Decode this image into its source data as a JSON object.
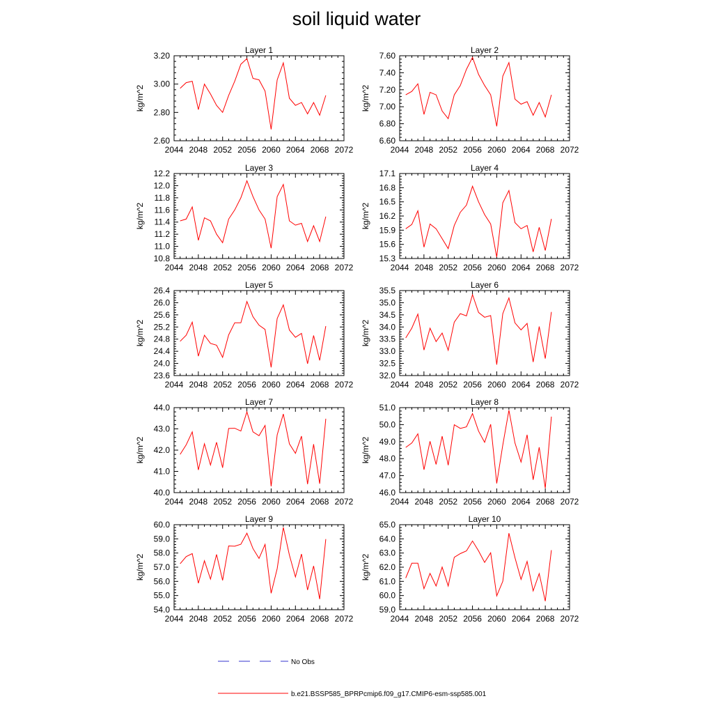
{
  "figure": {
    "title": "soil liquid water",
    "legend": [
      {
        "label": "No Obs",
        "color": "#3333cc",
        "style": "dashed"
      },
      {
        "label": "b.e21.BSSP585_BPRPcmip6.f09_g17.CMIP6-esm-ssp585.001",
        "color": "#ff0000",
        "style": "solid"
      }
    ]
  },
  "chart_data": [
    {
      "type": "line",
      "title": "Layer 1",
      "ylabel": "kg/m^2",
      "xlim": [
        2044,
        2072
      ],
      "ylim": [
        2.6,
        3.2
      ],
      "yticks": [
        "2.60",
        "2.80",
        "3.00",
        "3.20"
      ],
      "xticks": [
        2044,
        2048,
        2052,
        2056,
        2060,
        2064,
        2068,
        2072
      ],
      "grid": false,
      "x": [
        2045,
        2046,
        2047,
        2048,
        2049,
        2050,
        2051,
        2052,
        2053,
        2054,
        2055,
        2056,
        2057,
        2058,
        2059,
        2060,
        2061,
        2062,
        2063,
        2064,
        2065,
        2066,
        2067,
        2068,
        2069
      ],
      "series": [
        {
          "name": "b.e21.BSSP585_BPRPcmip6.f09_g17.CMIP6-esm-ssp585.001",
          "color": "#ff0000",
          "values": [
            2.97,
            3.01,
            3.02,
            2.82,
            3.0,
            2.93,
            2.85,
            2.8,
            2.92,
            3.02,
            3.14,
            3.18,
            3.04,
            3.03,
            2.95,
            2.68,
            3.03,
            3.15,
            2.9,
            2.85,
            2.87,
            2.79,
            2.87,
            2.78,
            2.92
          ]
        }
      ]
    },
    {
      "type": "line",
      "title": "Layer 2",
      "ylabel": "kg/m^2",
      "xlim": [
        2044,
        2072
      ],
      "ylim": [
        6.6,
        7.6
      ],
      "yticks": [
        "6.60",
        "6.80",
        "7.00",
        "7.20",
        "7.40",
        "7.60"
      ],
      "xticks": [
        2044,
        2048,
        2052,
        2056,
        2060,
        2064,
        2068,
        2072
      ],
      "grid": false,
      "x": [
        2045,
        2046,
        2047,
        2048,
        2049,
        2050,
        2051,
        2052,
        2053,
        2054,
        2055,
        2056,
        2057,
        2058,
        2059,
        2060,
        2061,
        2062,
        2063,
        2064,
        2065,
        2066,
        2067,
        2068,
        2069
      ],
      "series": [
        {
          "name": "b.e21.BSSP585_BPRPcmip6.f09_g17.CMIP6-esm-ssp585.001",
          "color": "#ff0000",
          "values": [
            7.14,
            7.18,
            7.27,
            6.91,
            7.17,
            7.14,
            6.95,
            6.86,
            7.14,
            7.25,
            7.44,
            7.58,
            7.38,
            7.25,
            7.14,
            6.77,
            7.36,
            7.52,
            7.09,
            7.03,
            7.06,
            6.9,
            7.05,
            6.88,
            7.14
          ]
        }
      ]
    },
    {
      "type": "line",
      "title": "Layer 3",
      "ylabel": "kg/m^2",
      "xlim": [
        2044,
        2072
      ],
      "ylim": [
        10.8,
        12.2
      ],
      "yticks": [
        "10.8",
        "11.0",
        "11.2",
        "11.4",
        "11.6",
        "11.8",
        "12.0",
        "12.2"
      ],
      "xticks": [
        2044,
        2048,
        2052,
        2056,
        2060,
        2064,
        2068,
        2072
      ],
      "grid": false,
      "x": [
        2045,
        2046,
        2047,
        2048,
        2049,
        2050,
        2051,
        2052,
        2053,
        2054,
        2055,
        2056,
        2057,
        2058,
        2059,
        2060,
        2061,
        2062,
        2063,
        2064,
        2065,
        2066,
        2067,
        2068,
        2069
      ],
      "series": [
        {
          "name": "b.e21.BSSP585_BPRPcmip6.f09_g17.CMIP6-esm-ssp585.001",
          "color": "#ff0000",
          "values": [
            11.42,
            11.45,
            11.65,
            11.1,
            11.47,
            11.42,
            11.2,
            11.06,
            11.45,
            11.6,
            11.8,
            12.08,
            11.82,
            11.6,
            11.45,
            10.97,
            11.82,
            12.02,
            11.42,
            11.35,
            11.38,
            11.08,
            11.34,
            11.08,
            11.49
          ]
        }
      ]
    },
    {
      "type": "line",
      "title": "Layer 4",
      "ylabel": "kg/m^2",
      "xlim": [
        2044,
        2072
      ],
      "ylim": [
        15.3,
        17.1
      ],
      "yticks": [
        "15.3",
        "15.6",
        "15.9",
        "16.2",
        "16.5",
        "16.8",
        "17.1"
      ],
      "xticks": [
        2044,
        2048,
        2052,
        2056,
        2060,
        2064,
        2068,
        2072
      ],
      "grid": false,
      "x": [
        2045,
        2046,
        2047,
        2048,
        2049,
        2050,
        2051,
        2052,
        2053,
        2054,
        2055,
        2056,
        2057,
        2058,
        2059,
        2060,
        2061,
        2062,
        2063,
        2064,
        2065,
        2066,
        2067,
        2068,
        2069
      ],
      "series": [
        {
          "name": "b.e21.BSSP585_BPRPcmip6.f09_g17.CMIP6-esm-ssp585.001",
          "color": "#ff0000",
          "values": [
            15.93,
            16.02,
            16.31,
            15.54,
            16.03,
            15.93,
            15.72,
            15.51,
            16.0,
            16.28,
            16.43,
            16.83,
            16.5,
            16.23,
            16.03,
            15.33,
            16.48,
            16.74,
            16.06,
            15.93,
            16.0,
            15.44,
            15.96,
            15.47,
            16.14
          ]
        }
      ]
    },
    {
      "type": "line",
      "title": "Layer 5",
      "ylabel": "kg/m^2",
      "xlim": [
        2044,
        2072
      ],
      "ylim": [
        23.6,
        26.4
      ],
      "yticks": [
        "23.6",
        "24.0",
        "24.4",
        "24.8",
        "25.2",
        "25.6",
        "26.0",
        "26.4"
      ],
      "xticks": [
        2044,
        2048,
        2052,
        2056,
        2060,
        2064,
        2068,
        2072
      ],
      "grid": false,
      "x": [
        2045,
        2046,
        2047,
        2048,
        2049,
        2050,
        2051,
        2052,
        2053,
        2054,
        2055,
        2056,
        2057,
        2058,
        2059,
        2060,
        2061,
        2062,
        2063,
        2064,
        2065,
        2066,
        2067,
        2068,
        2069
      ],
      "series": [
        {
          "name": "b.e21.BSSP585_BPRPcmip6.f09_g17.CMIP6-esm-ssp585.001",
          "color": "#ff0000",
          "values": [
            24.73,
            24.93,
            25.36,
            24.24,
            24.93,
            24.66,
            24.6,
            24.2,
            24.94,
            25.34,
            25.34,
            26.04,
            25.54,
            25.26,
            25.12,
            23.87,
            25.48,
            25.93,
            25.1,
            24.86,
            24.99,
            23.99,
            24.92,
            24.1,
            25.23
          ]
        }
      ]
    },
    {
      "type": "line",
      "title": "Layer 6",
      "ylabel": "kg/m^2",
      "xlim": [
        2044,
        2072
      ],
      "ylim": [
        32.0,
        35.5
      ],
      "yticks": [
        "32.0",
        "32.5",
        "33.0",
        "33.5",
        "34.0",
        "34.5",
        "35.0",
        "35.5"
      ],
      "xticks": [
        2044,
        2048,
        2052,
        2056,
        2060,
        2064,
        2068,
        2072
      ],
      "grid": false,
      "x": [
        2045,
        2046,
        2047,
        2048,
        2049,
        2050,
        2051,
        2052,
        2053,
        2054,
        2055,
        2056,
        2057,
        2058,
        2059,
        2060,
        2061,
        2062,
        2063,
        2064,
        2065,
        2066,
        2067,
        2068,
        2069
      ],
      "series": [
        {
          "name": "b.e21.BSSP585_BPRPcmip6.f09_g17.CMIP6-esm-ssp585.001",
          "color": "#ff0000",
          "values": [
            33.55,
            33.95,
            34.53,
            33.05,
            33.95,
            33.4,
            33.75,
            33.04,
            34.2,
            34.55,
            34.46,
            35.33,
            34.6,
            34.4,
            34.47,
            32.45,
            34.55,
            35.2,
            34.17,
            33.88,
            34.15,
            32.56,
            34.02,
            32.7,
            34.62
          ]
        }
      ]
    },
    {
      "type": "line",
      "title": "Layer 7",
      "ylabel": "kg/m^2",
      "xlim": [
        2044,
        2072
      ],
      "ylim": [
        40.0,
        44.0
      ],
      "yticks": [
        "40.0",
        "41.0",
        "42.0",
        "43.0",
        "44.0"
      ],
      "xticks": [
        2044,
        2048,
        2052,
        2056,
        2060,
        2064,
        2068,
        2072
      ],
      "grid": false,
      "x": [
        2045,
        2046,
        2047,
        2048,
        2049,
        2050,
        2051,
        2052,
        2053,
        2054,
        2055,
        2056,
        2057,
        2058,
        2059,
        2060,
        2061,
        2062,
        2063,
        2064,
        2065,
        2066,
        2067,
        2068,
        2069
      ],
      "series": [
        {
          "name": "b.e21.BSSP585_BPRPcmip6.f09_g17.CMIP6-esm-ssp585.001",
          "color": "#ff0000",
          "values": [
            41.8,
            42.25,
            42.86,
            41.07,
            42.3,
            41.3,
            42.37,
            41.17,
            43.02,
            43.03,
            42.9,
            43.8,
            42.86,
            42.68,
            43.16,
            40.3,
            42.72,
            43.7,
            42.3,
            41.85,
            42.66,
            40.4,
            42.28,
            40.42,
            43.48
          ]
        }
      ]
    },
    {
      "type": "line",
      "title": "Layer 8",
      "ylabel": "kg/m^2",
      "xlim": [
        2044,
        2072
      ],
      "ylim": [
        46.0,
        51.0
      ],
      "yticks": [
        "46.0",
        "47.0",
        "48.0",
        "49.0",
        "50.0",
        "51.0"
      ],
      "xticks": [
        2044,
        2048,
        2052,
        2056,
        2060,
        2064,
        2068,
        2072
      ],
      "grid": false,
      "x": [
        2045,
        2046,
        2047,
        2048,
        2049,
        2050,
        2051,
        2052,
        2053,
        2054,
        2055,
        2056,
        2057,
        2058,
        2059,
        2060,
        2061,
        2062,
        2063,
        2064,
        2065,
        2066,
        2067,
        2068,
        2069
      ],
      "series": [
        {
          "name": "b.e21.BSSP585_BPRPcmip6.f09_g17.CMIP6-esm-ssp585.001",
          "color": "#ff0000",
          "values": [
            48.66,
            48.92,
            49.46,
            47.35,
            49.02,
            47.66,
            49.32,
            47.61,
            49.99,
            49.78,
            49.87,
            50.65,
            49.62,
            48.96,
            50.02,
            46.54,
            48.8,
            50.85,
            48.92,
            47.8,
            49.4,
            46.76,
            48.67,
            46.26,
            50.47
          ]
        }
      ]
    },
    {
      "type": "line",
      "title": "Layer 9",
      "ylabel": "kg/m^2",
      "xlim": [
        2044,
        2072
      ],
      "ylim": [
        54.0,
        60.0
      ],
      "yticks": [
        "54.0",
        "55.0",
        "56.0",
        "57.0",
        "58.0",
        "59.0",
        "60.0"
      ],
      "xticks": [
        2044,
        2048,
        2052,
        2056,
        2060,
        2064,
        2068,
        2072
      ],
      "grid": false,
      "x": [
        2045,
        2046,
        2047,
        2048,
        2049,
        2050,
        2051,
        2052,
        2053,
        2054,
        2055,
        2056,
        2057,
        2058,
        2059,
        2060,
        2061,
        2062,
        2063,
        2064,
        2065,
        2066,
        2067,
        2068,
        2069
      ],
      "series": [
        {
          "name": "b.e21.BSSP585_BPRPcmip6.f09_g17.CMIP6-esm-ssp585.001",
          "color": "#ff0000",
          "values": [
            57.24,
            57.75,
            57.96,
            55.87,
            57.45,
            56.16,
            57.9,
            56.07,
            58.5,
            58.48,
            58.62,
            59.4,
            58.32,
            57.62,
            58.61,
            55.16,
            56.9,
            59.81,
            57.86,
            56.31,
            57.93,
            55.39,
            57.09,
            54.75,
            58.98
          ]
        }
      ]
    },
    {
      "type": "line",
      "title": "Layer 10",
      "ylabel": "kg/m^2",
      "xlim": [
        2044,
        2072
      ],
      "ylim": [
        59.0,
        65.0
      ],
      "yticks": [
        "59.0",
        "60.0",
        "61.0",
        "62.0",
        "63.0",
        "64.0",
        "65.0"
      ],
      "xticks": [
        2044,
        2048,
        2052,
        2056,
        2060,
        2064,
        2068,
        2072
      ],
      "grid": false,
      "x": [
        2045,
        2046,
        2047,
        2048,
        2049,
        2050,
        2051,
        2052,
        2053,
        2054,
        2055,
        2056,
        2057,
        2058,
        2059,
        2060,
        2061,
        2062,
        2063,
        2064,
        2065,
        2066,
        2067,
        2068,
        2069
      ],
      "series": [
        {
          "name": "b.e21.BSSP585_BPRPcmip6.f09_g17.CMIP6-esm-ssp585.001",
          "color": "#ff0000",
          "values": [
            61.24,
            62.28,
            62.28,
            60.48,
            61.56,
            60.67,
            62.01,
            60.67,
            62.7,
            62.96,
            63.15,
            63.85,
            63.15,
            62.34,
            63.02,
            59.98,
            61.0,
            64.4,
            62.67,
            61.14,
            62.41,
            60.33,
            61.55,
            59.6,
            63.2
          ]
        }
      ]
    }
  ]
}
